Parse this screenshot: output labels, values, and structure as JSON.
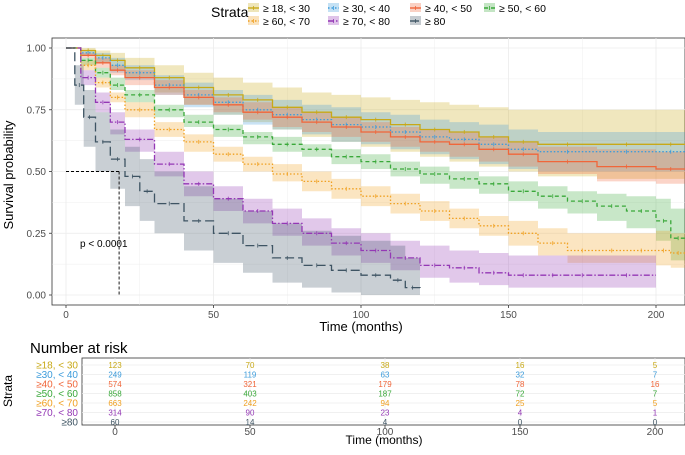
{
  "chart_data": {
    "type": "line",
    "subtype": "kaplan-meier",
    "legend_title": "Strata",
    "legend_position": "top",
    "xlabel": "Time (months)",
    "ylabel": "Survival probability",
    "xlim": [
      0,
      210
    ],
    "ylim": [
      0,
      1
    ],
    "xticks": [
      0,
      50,
      100,
      150,
      200
    ],
    "xtick_labels": [
      "0",
      "50",
      "100",
      "150",
      "200"
    ],
    "yticks": [
      0,
      0.25,
      0.5,
      0.75,
      1
    ],
    "ytick_labels": [
      "0.00",
      "0.25",
      "0.50",
      "0.75",
      "1.00"
    ],
    "median_line": {
      "x": 18,
      "y": 0.5
    },
    "annotation": "p < 0.0001",
    "series": [
      {
        "name": "≥ 18, < 30",
        "short": "≥18, < 30",
        "color": "#c8a917",
        "dash": "",
        "x": [
          0,
          5,
          10,
          15,
          20,
          30,
          40,
          50,
          60,
          70,
          80,
          90,
          100,
          110,
          120,
          130,
          140,
          150,
          160,
          180,
          200,
          210
        ],
        "y": [
          1,
          0.99,
          0.97,
          0.95,
          0.92,
          0.88,
          0.84,
          0.81,
          0.79,
          0.76,
          0.74,
          0.72,
          0.71,
          0.69,
          0.67,
          0.66,
          0.64,
          0.62,
          0.61,
          0.61,
          0.61,
          0.61
        ],
        "ci_upper": [
          1,
          1,
          0.99,
          0.98,
          0.96,
          0.93,
          0.9,
          0.88,
          0.86,
          0.84,
          0.82,
          0.81,
          0.8,
          0.79,
          0.78,
          0.77,
          0.76,
          0.75,
          0.75,
          0.75,
          0.75,
          0.75
        ],
        "ci_lower": [
          1,
          0.97,
          0.94,
          0.91,
          0.88,
          0.82,
          0.77,
          0.73,
          0.7,
          0.67,
          0.64,
          0.62,
          0.6,
          0.58,
          0.56,
          0.54,
          0.52,
          0.5,
          0.48,
          0.47,
          0.47,
          0.47
        ]
      },
      {
        "name": "≥ 30, < 40",
        "short": "≥30, < 40",
        "color": "#3d9cdb",
        "dash": "1.5 2",
        "x": [
          0,
          5,
          10,
          15,
          20,
          30,
          40,
          50,
          60,
          70,
          80,
          90,
          100,
          110,
          120,
          130,
          140,
          150,
          160,
          180,
          200,
          210
        ],
        "y": [
          1,
          0.98,
          0.96,
          0.93,
          0.9,
          0.85,
          0.81,
          0.78,
          0.75,
          0.73,
          0.71,
          0.69,
          0.68,
          0.66,
          0.64,
          0.63,
          0.61,
          0.59,
          0.58,
          0.58,
          0.58,
          0.58
        ],
        "ci_upper": [
          1,
          0.99,
          0.98,
          0.96,
          0.93,
          0.89,
          0.86,
          0.83,
          0.81,
          0.79,
          0.77,
          0.76,
          0.74,
          0.73,
          0.71,
          0.7,
          0.69,
          0.67,
          0.66,
          0.66,
          0.66,
          0.66
        ],
        "ci_lower": [
          1,
          0.97,
          0.94,
          0.9,
          0.87,
          0.81,
          0.76,
          0.73,
          0.69,
          0.67,
          0.65,
          0.62,
          0.61,
          0.59,
          0.57,
          0.55,
          0.53,
          0.51,
          0.5,
          0.5,
          0.5,
          0.5
        ]
      },
      {
        "name": "≥ 40, < 50",
        "short": "≥40, < 50",
        "color": "#f0663a",
        "dash": "",
        "x": [
          0,
          5,
          10,
          15,
          20,
          30,
          40,
          50,
          60,
          70,
          80,
          90,
          100,
          110,
          120,
          130,
          140,
          150,
          160,
          180,
          200,
          210
        ],
        "y": [
          1,
          0.97,
          0.94,
          0.91,
          0.88,
          0.84,
          0.8,
          0.77,
          0.74,
          0.72,
          0.7,
          0.68,
          0.66,
          0.64,
          0.62,
          0.61,
          0.59,
          0.57,
          0.54,
          0.52,
          0.51,
          0.51
        ],
        "ci_upper": [
          1,
          0.98,
          0.96,
          0.93,
          0.91,
          0.87,
          0.83,
          0.8,
          0.78,
          0.76,
          0.74,
          0.72,
          0.7,
          0.68,
          0.67,
          0.66,
          0.64,
          0.62,
          0.6,
          0.59,
          0.58,
          0.58
        ],
        "ci_lower": [
          1,
          0.96,
          0.92,
          0.89,
          0.85,
          0.81,
          0.77,
          0.74,
          0.71,
          0.68,
          0.66,
          0.64,
          0.62,
          0.6,
          0.58,
          0.56,
          0.54,
          0.52,
          0.49,
          0.46,
          0.45,
          0.45
        ]
      },
      {
        "name": "≥ 50, < 60",
        "short": "≥50, < 60",
        "color": "#3aa83a",
        "dash": "4 3",
        "x": [
          0,
          5,
          10,
          15,
          20,
          30,
          40,
          50,
          60,
          70,
          80,
          90,
          100,
          110,
          120,
          130,
          140,
          150,
          160,
          170,
          180,
          190,
          200,
          205,
          210
        ],
        "y": [
          1,
          0.95,
          0.9,
          0.85,
          0.81,
          0.75,
          0.7,
          0.67,
          0.64,
          0.61,
          0.59,
          0.56,
          0.54,
          0.51,
          0.49,
          0.47,
          0.45,
          0.42,
          0.4,
          0.38,
          0.36,
          0.34,
          0.3,
          0.23,
          0.23
        ],
        "ci_upper": [
          1,
          0.96,
          0.92,
          0.88,
          0.83,
          0.77,
          0.73,
          0.69,
          0.66,
          0.64,
          0.61,
          0.59,
          0.57,
          0.54,
          0.52,
          0.5,
          0.48,
          0.46,
          0.44,
          0.42,
          0.41,
          0.4,
          0.39,
          0.35,
          0.35
        ],
        "ci_lower": [
          1,
          0.93,
          0.88,
          0.83,
          0.78,
          0.72,
          0.68,
          0.64,
          0.61,
          0.58,
          0.56,
          0.53,
          0.51,
          0.48,
          0.45,
          0.43,
          0.41,
          0.38,
          0.35,
          0.33,
          0.3,
          0.27,
          0.22,
          0.14,
          0.14
        ]
      },
      {
        "name": "≥ 60, < 70",
        "short": "≥60, < 70",
        "color": "#f0a020",
        "dash": "1.5 2",
        "x": [
          0,
          5,
          10,
          15,
          20,
          30,
          40,
          50,
          60,
          70,
          80,
          90,
          100,
          110,
          120,
          130,
          140,
          150,
          160,
          170,
          180,
          190,
          200,
          205,
          210
        ],
        "y": [
          1,
          0.93,
          0.86,
          0.8,
          0.75,
          0.67,
          0.62,
          0.57,
          0.53,
          0.49,
          0.46,
          0.43,
          0.4,
          0.37,
          0.34,
          0.31,
          0.28,
          0.25,
          0.21,
          0.18,
          0.18,
          0.18,
          0.18,
          0.17,
          0.17
        ],
        "ci_upper": [
          1,
          0.95,
          0.88,
          0.82,
          0.78,
          0.7,
          0.65,
          0.6,
          0.56,
          0.53,
          0.5,
          0.47,
          0.44,
          0.41,
          0.38,
          0.35,
          0.32,
          0.3,
          0.27,
          0.25,
          0.25,
          0.25,
          0.26,
          0.25,
          0.25
        ],
        "ci_lower": [
          1,
          0.91,
          0.84,
          0.78,
          0.72,
          0.64,
          0.58,
          0.54,
          0.5,
          0.46,
          0.42,
          0.39,
          0.36,
          0.33,
          0.3,
          0.27,
          0.24,
          0.2,
          0.16,
          0.13,
          0.13,
          0.13,
          0.12,
          0.11,
          0.11
        ]
      },
      {
        "name": "≥ 70, < 80",
        "short": "≥70, < 80",
        "color": "#9438b5",
        "dash": "6 2 1.5 2",
        "x": [
          0,
          5,
          10,
          15,
          20,
          30,
          40,
          50,
          60,
          70,
          80,
          90,
          100,
          110,
          120,
          130,
          140,
          150,
          160,
          170,
          180,
          200
        ],
        "y": [
          1,
          0.88,
          0.78,
          0.7,
          0.63,
          0.53,
          0.45,
          0.39,
          0.34,
          0.29,
          0.25,
          0.21,
          0.18,
          0.15,
          0.12,
          0.11,
          0.09,
          0.08,
          0.08,
          0.08,
          0.08,
          0.08
        ],
        "ci_upper": [
          1,
          0.91,
          0.82,
          0.74,
          0.67,
          0.58,
          0.5,
          0.44,
          0.39,
          0.35,
          0.31,
          0.27,
          0.25,
          0.22,
          0.2,
          0.18,
          0.17,
          0.16,
          0.16,
          0.16,
          0.16,
          0.16
        ],
        "ci_lower": [
          1,
          0.85,
          0.74,
          0.65,
          0.58,
          0.48,
          0.4,
          0.34,
          0.29,
          0.24,
          0.2,
          0.16,
          0.13,
          0.1,
          0.07,
          0.05,
          0.04,
          0.03,
          0.03,
          0.03,
          0.03,
          0.03
        ]
      },
      {
        "name": "≥ 80",
        "short": "≥80",
        "color": "#3e5463",
        "dash": "9 4",
        "x": [
          0,
          3,
          6,
          10,
          15,
          20,
          25,
          30,
          40,
          50,
          60,
          70,
          80,
          90,
          100,
          110,
          115,
          120
        ],
        "y": [
          1,
          0.85,
          0.72,
          0.62,
          0.55,
          0.48,
          0.42,
          0.37,
          0.3,
          0.25,
          0.2,
          0.15,
          0.12,
          0.1,
          0.08,
          0.06,
          0.03,
          0.02
        ],
        "ci_upper": [
          1,
          0.93,
          0.83,
          0.74,
          0.67,
          0.6,
          0.55,
          0.5,
          0.44,
          0.39,
          0.34,
          0.29,
          0.26,
          0.24,
          0.22,
          0.2,
          0.15,
          0.13
        ],
        "ci_lower": [
          1,
          0.77,
          0.6,
          0.5,
          0.43,
          0.36,
          0.3,
          0.25,
          0.18,
          0.13,
          0.09,
          0.05,
          0.03,
          0.01,
          0,
          0,
          0,
          0
        ]
      }
    ]
  },
  "risk_table": {
    "title": "Number at risk",
    "ylabel": "Strata",
    "xlabel": "Time (months)",
    "xticks": [
      "0",
      "50",
      "100",
      "150",
      "200"
    ],
    "rows": [
      {
        "label": "≥18, < 30",
        "values": [
          "123",
          "70",
          "38",
          "16",
          "5"
        ]
      },
      {
        "label": "≥30, < 40",
        "values": [
          "249",
          "119",
          "63",
          "32",
          "7"
        ]
      },
      {
        "label": "≥40, < 50",
        "values": [
          "574",
          "321",
          "179",
          "78",
          "16"
        ]
      },
      {
        "label": "≥50, < 60",
        "values": [
          "858",
          "403",
          "187",
          "72",
          "7"
        ]
      },
      {
        "label": "≥60, < 70",
        "values": [
          "663",
          "242",
          "94",
          "25",
          "5"
        ]
      },
      {
        "label": "≥70, < 80",
        "values": [
          "314",
          "90",
          "23",
          "4",
          "1"
        ]
      },
      {
        "label": "≥80",
        "values": [
          "60",
          "14",
          "4",
          "0",
          "0"
        ]
      }
    ]
  }
}
